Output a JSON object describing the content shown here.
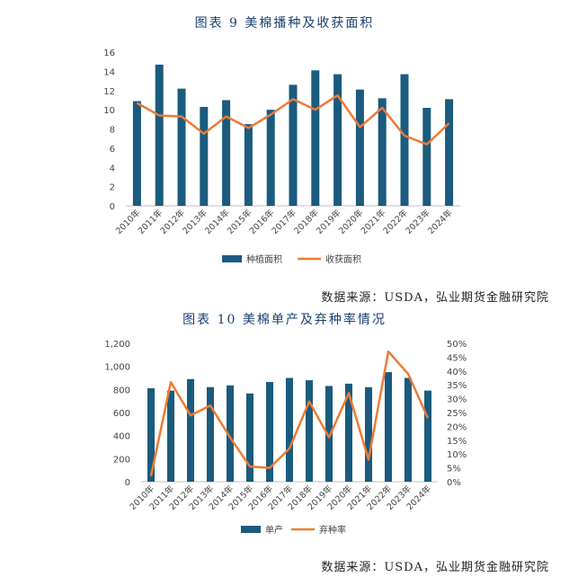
{
  "figure1": {
    "title": "图表 9   美棉播种及收获面积",
    "source": "数据来源：USDA，弘业期货金融研究院"
  },
  "figure2": {
    "title": "图表 10   美棉单产及弃种率情况",
    "source": "数据来源：USDA，弘业期货金融研究院"
  },
  "colors": {
    "bar": "#1a5b7e",
    "line": "#ec7b34",
    "title": "#1a3f6f"
  },
  "chart_data": [
    {
      "type": "bar",
      "categories": [
        "2010年",
        "2011年",
        "2012年",
        "2013年",
        "2014年",
        "2015年",
        "2016年",
        "2017年",
        "2018年",
        "2019年",
        "2020年",
        "2021年",
        "2022年",
        "2023年",
        "2024年"
      ],
      "ylim": [
        0,
        16
      ],
      "yticks": [
        "0",
        "2",
        "4",
        "6",
        "8",
        "10",
        "12",
        "14",
        "16"
      ],
      "grid": false,
      "legend_position": "bottom",
      "series": [
        {
          "name": "种植面积",
          "type": "bar",
          "values": [
            10.9,
            14.7,
            12.2,
            10.3,
            11.0,
            8.5,
            10.0,
            12.6,
            14.1,
            13.7,
            12.1,
            11.2,
            13.7,
            10.2,
            11.1
          ]
        },
        {
          "name": "收获面积",
          "type": "line",
          "values": [
            10.7,
            9.4,
            9.3,
            7.5,
            9.3,
            8.1,
            9.5,
            11.1,
            10.0,
            11.5,
            8.2,
            10.2,
            7.3,
            6.4,
            8.6
          ]
        }
      ]
    },
    {
      "type": "bar",
      "categories": [
        "2010年",
        "2011年",
        "2012年",
        "2013年",
        "2014年",
        "2015年",
        "2016年",
        "2017年",
        "2018年",
        "2019年",
        "2020年",
        "2021年",
        "2022年",
        "2023年",
        "2024年"
      ],
      "ylim": [
        0,
        1200
      ],
      "yticks": [
        "0",
        "200",
        "400",
        "600",
        "800",
        "1,000",
        "1,200"
      ],
      "y2lim": [
        0,
        50
      ],
      "y2ticks": [
        "0%",
        "5%",
        "10%",
        "15%",
        "20%",
        "25%",
        "30%",
        "35%",
        "40%",
        "45%",
        "50%"
      ],
      "grid": false,
      "legend_position": "bottom",
      "series": [
        {
          "name": "单产",
          "type": "bar",
          "axis": "left",
          "values": [
            810,
            790,
            890,
            820,
            835,
            765,
            865,
            900,
            880,
            830,
            850,
            820,
            950,
            900,
            790
          ]
        },
        {
          "name": "弃种率",
          "type": "line",
          "axis": "right",
          "values": [
            2,
            36,
            24,
            27.5,
            16,
            5.5,
            5,
            12,
            29,
            16,
            32,
            8,
            47,
            39,
            23
          ]
        }
      ]
    }
  ]
}
